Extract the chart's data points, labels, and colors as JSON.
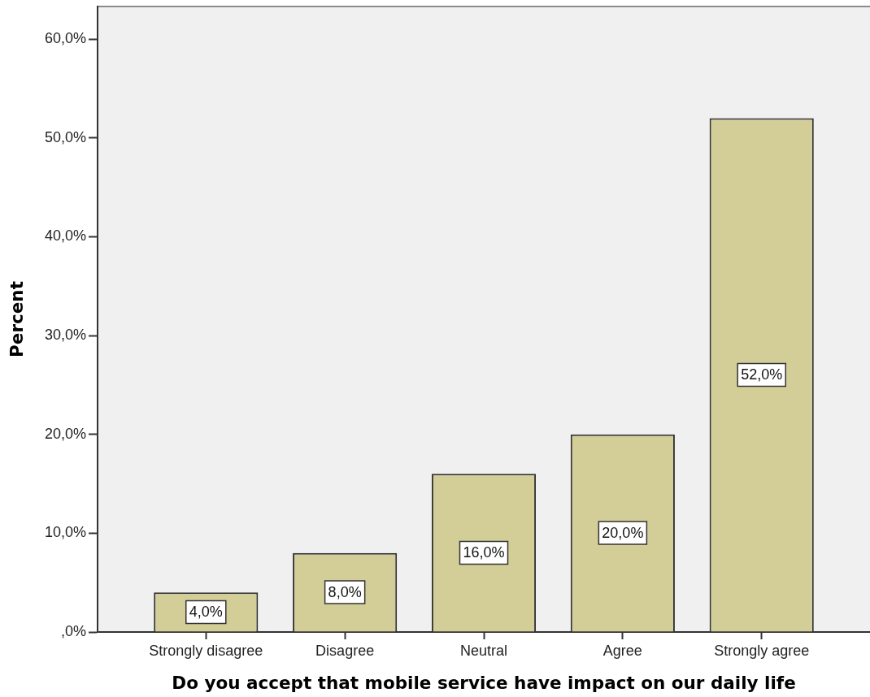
{
  "chart_data": {
    "type": "bar",
    "xlabel": "Do you accept that mobile service have impact on our daily life",
    "ylabel": "Percent",
    "categories": [
      "Strongly disagree",
      "Disagree",
      "Neutral",
      "Agree",
      "Strongly agree"
    ],
    "values": [
      4,
      8,
      16,
      20,
      52
    ],
    "color": "#d3ce97",
    "value_labels": [
      "4,0%",
      "8,0%",
      "16,0%",
      "20,0%",
      "52,0%"
    ],
    "ylim": [
      0,
      63.3
    ],
    "yticks": [
      {
        "value": 0,
        "label": ",0%"
      },
      {
        "value": 10,
        "label": "10,0%"
      },
      {
        "value": 20,
        "label": "20,0%"
      },
      {
        "value": 30,
        "label": "30,0%"
      },
      {
        "value": 40,
        "label": "40,0%"
      },
      {
        "value": 50,
        "label": "50,0%"
      },
      {
        "value": 60,
        "label": "60,0%"
      }
    ],
    "grid": false
  }
}
